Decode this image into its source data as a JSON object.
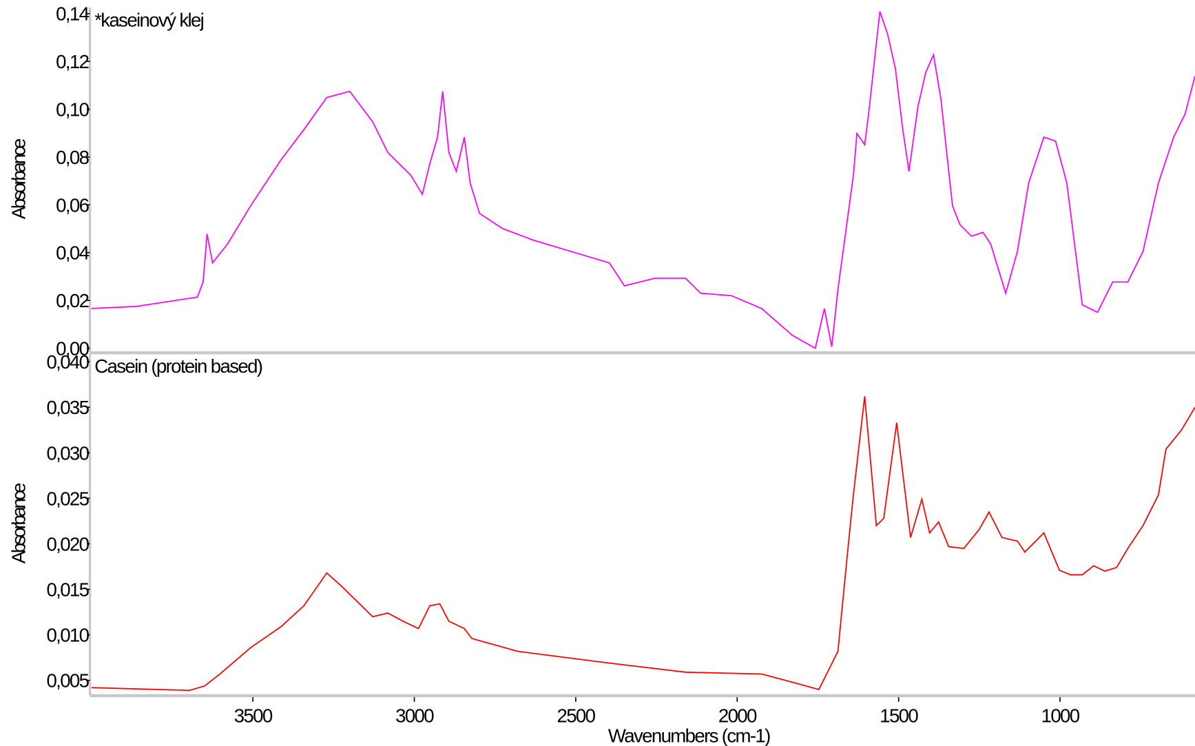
{
  "chart_data": [
    {
      "type": "line",
      "title": "*kaseinový klej",
      "ylabel": "Absorbance",
      "color": "#ff00ff",
      "xlim": [
        4000,
        582
      ],
      "ylim": [
        -0.0016,
        0.1425
      ],
      "yticks": [
        {
          "value": 0,
          "label": "0,00"
        },
        {
          "value": 0.02,
          "label": "0,02"
        },
        {
          "value": 0.04,
          "label": "0,04"
        },
        {
          "value": 0.06,
          "label": "0,06"
        },
        {
          "value": 0.08,
          "label": "0,08"
        },
        {
          "value": 0.1,
          "label": "0,10"
        },
        {
          "value": 0.12,
          "label": "0,12"
        },
        {
          "value": 0.14,
          "label": "0,14"
        }
      ],
      "x": [
        4000,
        3862,
        3672,
        3654,
        3642,
        3625,
        3578,
        3507,
        3413,
        3342,
        3271,
        3200,
        3129,
        3082,
        3011,
        2975,
        2952,
        2928,
        2912,
        2893,
        2870,
        2845,
        2827,
        2798,
        2727,
        2633,
        2515,
        2396,
        2349,
        2255,
        2160,
        2113,
        2018,
        1924,
        1829,
        1758,
        1730,
        1707,
        1688,
        1659,
        1640,
        1629,
        1605,
        1593,
        1558,
        1534,
        1510,
        1487,
        1468,
        1440,
        1416,
        1392,
        1369,
        1333,
        1310,
        1274,
        1239,
        1215,
        1168,
        1132,
        1097,
        1050,
        1014,
        979,
        931,
        884,
        837,
        790,
        743,
        695,
        648,
        613,
        582
      ],
      "values": [
        0.0166,
        0.0175,
        0.0214,
        0.0278,
        0.0478,
        0.0357,
        0.0437,
        0.0596,
        0.0788,
        0.0915,
        0.1049,
        0.1075,
        0.0947,
        0.0819,
        0.0724,
        0.0644,
        0.0772,
        0.0883,
        0.1075,
        0.0819,
        0.074,
        0.0883,
        0.0692,
        0.0564,
        0.0501,
        0.0453,
        0.0405,
        0.0357,
        0.0261,
        0.0293,
        0.0293,
        0.023,
        0.022,
        0.0166,
        0.0054,
        0.0,
        0.0166,
        0.0006,
        0.0246,
        0.0533,
        0.0724,
        0.0899,
        0.0851,
        0.0979,
        0.1409,
        0.1314,
        0.117,
        0.0915,
        0.074,
        0.1011,
        0.1154,
        0.1228,
        0.1043,
        0.0596,
        0.0517,
        0.0469,
        0.0485,
        0.0437,
        0.023,
        0.0405,
        0.0692,
        0.0883,
        0.0867,
        0.0692,
        0.0182,
        0.015,
        0.0277,
        0.0277,
        0.0405,
        0.0692,
        0.0883,
        0.0979,
        0.1138
      ]
    },
    {
      "type": "line",
      "title": "Casein (protein based)",
      "ylabel": "Absorbance",
      "xlabel": "Wavenumbers (cm-1)",
      "color": "#ff0000",
      "xlim": [
        4000,
        582
      ],
      "ylim": [
        0.0034,
        0.0409
      ],
      "xticks": [
        3500,
        3000,
        2500,
        2000,
        1500,
        1000
      ],
      "yticks": [
        {
          "value": 0.005,
          "label": "0,005"
        },
        {
          "value": 0.01,
          "label": "0,010"
        },
        {
          "value": 0.015,
          "label": "0,015"
        },
        {
          "value": 0.02,
          "label": "0,020"
        },
        {
          "value": 0.025,
          "label": "0,025"
        },
        {
          "value": 0.03,
          "label": "0,030"
        },
        {
          "value": 0.035,
          "label": "0,035"
        },
        {
          "value": 0.04,
          "label": "0,040"
        }
      ],
      "x": [
        4000,
        3696,
        3649,
        3602,
        3507,
        3413,
        3342,
        3271,
        3224,
        3129,
        3082,
        3035,
        2987,
        2952,
        2921,
        2893,
        2845,
        2822,
        2680,
        2396,
        2160,
        1924,
        1829,
        1747,
        1688,
        1659,
        1640,
        1605,
        1569,
        1546,
        1506,
        1463,
        1428,
        1404,
        1376,
        1345,
        1298,
        1250,
        1220,
        1180,
        1132,
        1109,
        1050,
        1002,
        967,
        931,
        896,
        861,
        825,
        790,
        743,
        695,
        672,
        624,
        582
      ],
      "values": [
        0.0042,
        0.0039,
        0.0044,
        0.0057,
        0.0086,
        0.0109,
        0.0132,
        0.0168,
        0.0153,
        0.012,
        0.0124,
        0.0115,
        0.0107,
        0.0132,
        0.0134,
        0.0115,
        0.0107,
        0.0096,
        0.0082,
        0.0069,
        0.0059,
        0.0057,
        0.0048,
        0.004,
        0.0082,
        0.0187,
        0.0254,
        0.0362,
        0.022,
        0.0228,
        0.0333,
        0.0207,
        0.0249,
        0.0212,
        0.0224,
        0.0197,
        0.0195,
        0.0216,
        0.0235,
        0.0207,
        0.0203,
        0.0191,
        0.0212,
        0.0171,
        0.0166,
        0.0166,
        0.0176,
        0.017,
        0.0174,
        0.0195,
        0.022,
        0.0254,
        0.0304,
        0.0325,
        0.035
      ]
    }
  ]
}
